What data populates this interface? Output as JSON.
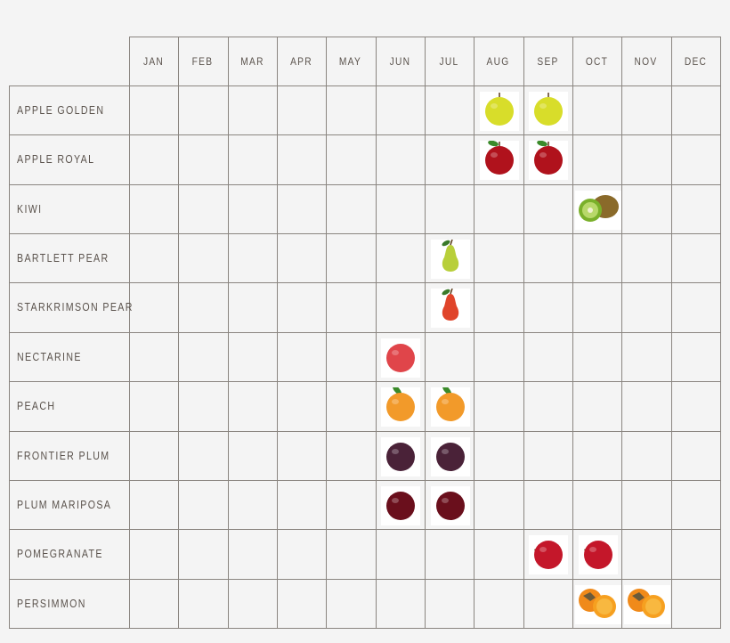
{
  "chart_data": {
    "type": "table",
    "title": "",
    "columns": [
      "JAN",
      "FEB",
      "MAR",
      "APR",
      "MAY",
      "JUN",
      "JUL",
      "AUG",
      "SEP",
      "OCT",
      "NOV",
      "DEC"
    ],
    "rows": [
      {
        "name": "APPLE GOLDEN",
        "months": [
          "AUG",
          "SEP"
        ],
        "icon": "golden-apple-icon",
        "color": "#d8dd2a"
      },
      {
        "name": "APPLE ROYAL",
        "months": [
          "AUG",
          "SEP"
        ],
        "icon": "red-apple-icon",
        "color": "#b0121c"
      },
      {
        "name": "KIWI",
        "months": [
          "OCT"
        ],
        "icon": "kiwi-icon",
        "color": "#7a9a2a"
      },
      {
        "name": "BARTLETT PEAR",
        "months": [
          "JUL"
        ],
        "icon": "green-pear-icon",
        "color": "#b8cf3a"
      },
      {
        "name": "STARKRIMSON PEAR",
        "months": [
          "JUL"
        ],
        "icon": "red-pear-icon",
        "color": "#e0442a"
      },
      {
        "name": "NECTARINE",
        "months": [
          "JUN"
        ],
        "icon": "nectarine-icon",
        "color": "#e0454a"
      },
      {
        "name": "PEACH",
        "months": [
          "JUN",
          "JUL"
        ],
        "icon": "peach-icon",
        "color": "#f29a2a"
      },
      {
        "name": "FRONTIER PLUM",
        "months": [
          "JUN",
          "JUL"
        ],
        "icon": "purple-plum-icon",
        "color": "#4a2238"
      },
      {
        "name": "PLUM MARIPOSA",
        "months": [
          "JUN",
          "JUL"
        ],
        "icon": "red-plum-icon",
        "color": "#6a0f1c"
      },
      {
        "name": "POMEGRANATE",
        "months": [
          "SEP",
          "OCT"
        ],
        "icon": "pomegranate-icon",
        "color": "#c4172a"
      },
      {
        "name": "PERSIMMON",
        "months": [
          "OCT",
          "NOV"
        ],
        "icon": "persimmon-icon",
        "color": "#f08a1a"
      }
    ],
    "grid": true
  }
}
